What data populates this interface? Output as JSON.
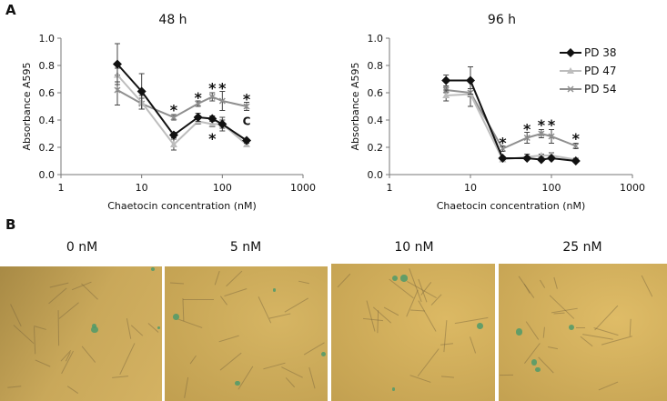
{
  "panel_a_label": "A",
  "panel_b_label": "B",
  "chart_data": [
    {
      "type": "line",
      "title": "48 h",
      "xlabel": "Chaetocin concentration (nM)",
      "ylabel": "Absorbance A595",
      "xscale": "log",
      "xlim": [
        1,
        1000
      ],
      "ylim": [
        0,
        1.0
      ],
      "xticks": [
        "1",
        "10",
        "100",
        "1000"
      ],
      "yticks": [
        "0.0",
        "0.2",
        "0.4",
        "0.6",
        "0.8",
        "1.0"
      ],
      "x": [
        5,
        10,
        25,
        50,
        75,
        100,
        200
      ],
      "series": [
        {
          "name": "PD 38",
          "color": "#111111",
          "marker": "diamond",
          "values": [
            0.81,
            0.61,
            0.29,
            0.42,
            0.41,
            0.37,
            0.25
          ],
          "errors": [
            0.15,
            0.13,
            0.02,
            0.03,
            0.02,
            0.05,
            0.01
          ]
        },
        {
          "name": "PD 47",
          "color": "#bdbdbd",
          "marker": "triangle",
          "values": [
            0.73,
            0.53,
            0.22,
            0.39,
            0.37,
            0.37,
            0.22
          ],
          "errors": [
            0.05,
            0.05,
            0.04,
            0.02,
            0.02,
            0.03,
            0.01
          ]
        },
        {
          "name": "PD 54",
          "color": "#8f8f8f",
          "marker": "x",
          "values": [
            0.62,
            0.52,
            0.42,
            0.52,
            0.57,
            0.54,
            0.5
          ],
          "errors": [
            0.11,
            0.04,
            0.02,
            0.02,
            0.03,
            0.07,
            0.03
          ]
        }
      ],
      "annotations": [
        {
          "text": "*",
          "x": 25,
          "y": 0.49
        },
        {
          "text": "*",
          "x": 50,
          "y": 0.58
        },
        {
          "text": "*",
          "x": 75,
          "y": 0.65
        },
        {
          "text": "*",
          "x": 100,
          "y": 0.65
        },
        {
          "text": "*",
          "x": 200,
          "y": 0.57
        },
        {
          "text": "C",
          "x": 200,
          "y": 0.39
        },
        {
          "text": "*",
          "x": 75,
          "y": 0.28
        }
      ],
      "legend": "none"
    },
    {
      "type": "line",
      "title": "96 h",
      "xlabel": "Chaetocin concentration (nM)",
      "ylabel": "Absorbance A595",
      "xscale": "log",
      "xlim": [
        1,
        1000
      ],
      "ylim": [
        0,
        1.0
      ],
      "xticks": [
        "1",
        "10",
        "100",
        "1000"
      ],
      "yticks": [
        "0.0",
        "0.2",
        "0.4",
        "0.6",
        "0.8",
        "1.0"
      ],
      "x": [
        5,
        10,
        25,
        50,
        75,
        100,
        200
      ],
      "series": [
        {
          "name": "PD 38",
          "color": "#111111",
          "marker": "diamond",
          "values": [
            0.69,
            0.69,
            0.12,
            0.12,
            0.11,
            0.12,
            0.1
          ],
          "errors": [
            0.04,
            0.1,
            0.01,
            0.01,
            0.01,
            0.01,
            0.01
          ]
        },
        {
          "name": "PD 47",
          "color": "#bdbdbd",
          "marker": "triangle",
          "values": [
            0.58,
            0.59,
            0.11,
            0.13,
            0.14,
            0.14,
            0.11
          ],
          "errors": [
            0.04,
            0.09,
            0.01,
            0.02,
            0.01,
            0.02,
            0.01
          ]
        },
        {
          "name": "PD 54",
          "color": "#8f8f8f",
          "marker": "x",
          "values": [
            0.62,
            0.6,
            0.19,
            0.27,
            0.3,
            0.28,
            0.21
          ],
          "errors": [
            0.02,
            0.03,
            0.02,
            0.04,
            0.03,
            0.05,
            0.02
          ]
        }
      ],
      "annotations": [
        {
          "text": "*",
          "x": 25,
          "y": 0.25
        },
        {
          "text": "*",
          "x": 50,
          "y": 0.35
        },
        {
          "text": "*",
          "x": 75,
          "y": 0.38
        },
        {
          "text": "*",
          "x": 100,
          "y": 0.38
        },
        {
          "text": "*",
          "x": 200,
          "y": 0.28
        }
      ],
      "legend": "top-right"
    }
  ],
  "micrographs": [
    {
      "label": "0 nM",
      "background": "#c9a85a"
    },
    {
      "label": "5 nM",
      "background": "#d6b563"
    },
    {
      "label": "10 nM",
      "background": "#dcb964"
    },
    {
      "label": "25 nM",
      "background": "#dfbc67"
    }
  ],
  "colors": {
    "stain": "#4f9a6a"
  }
}
